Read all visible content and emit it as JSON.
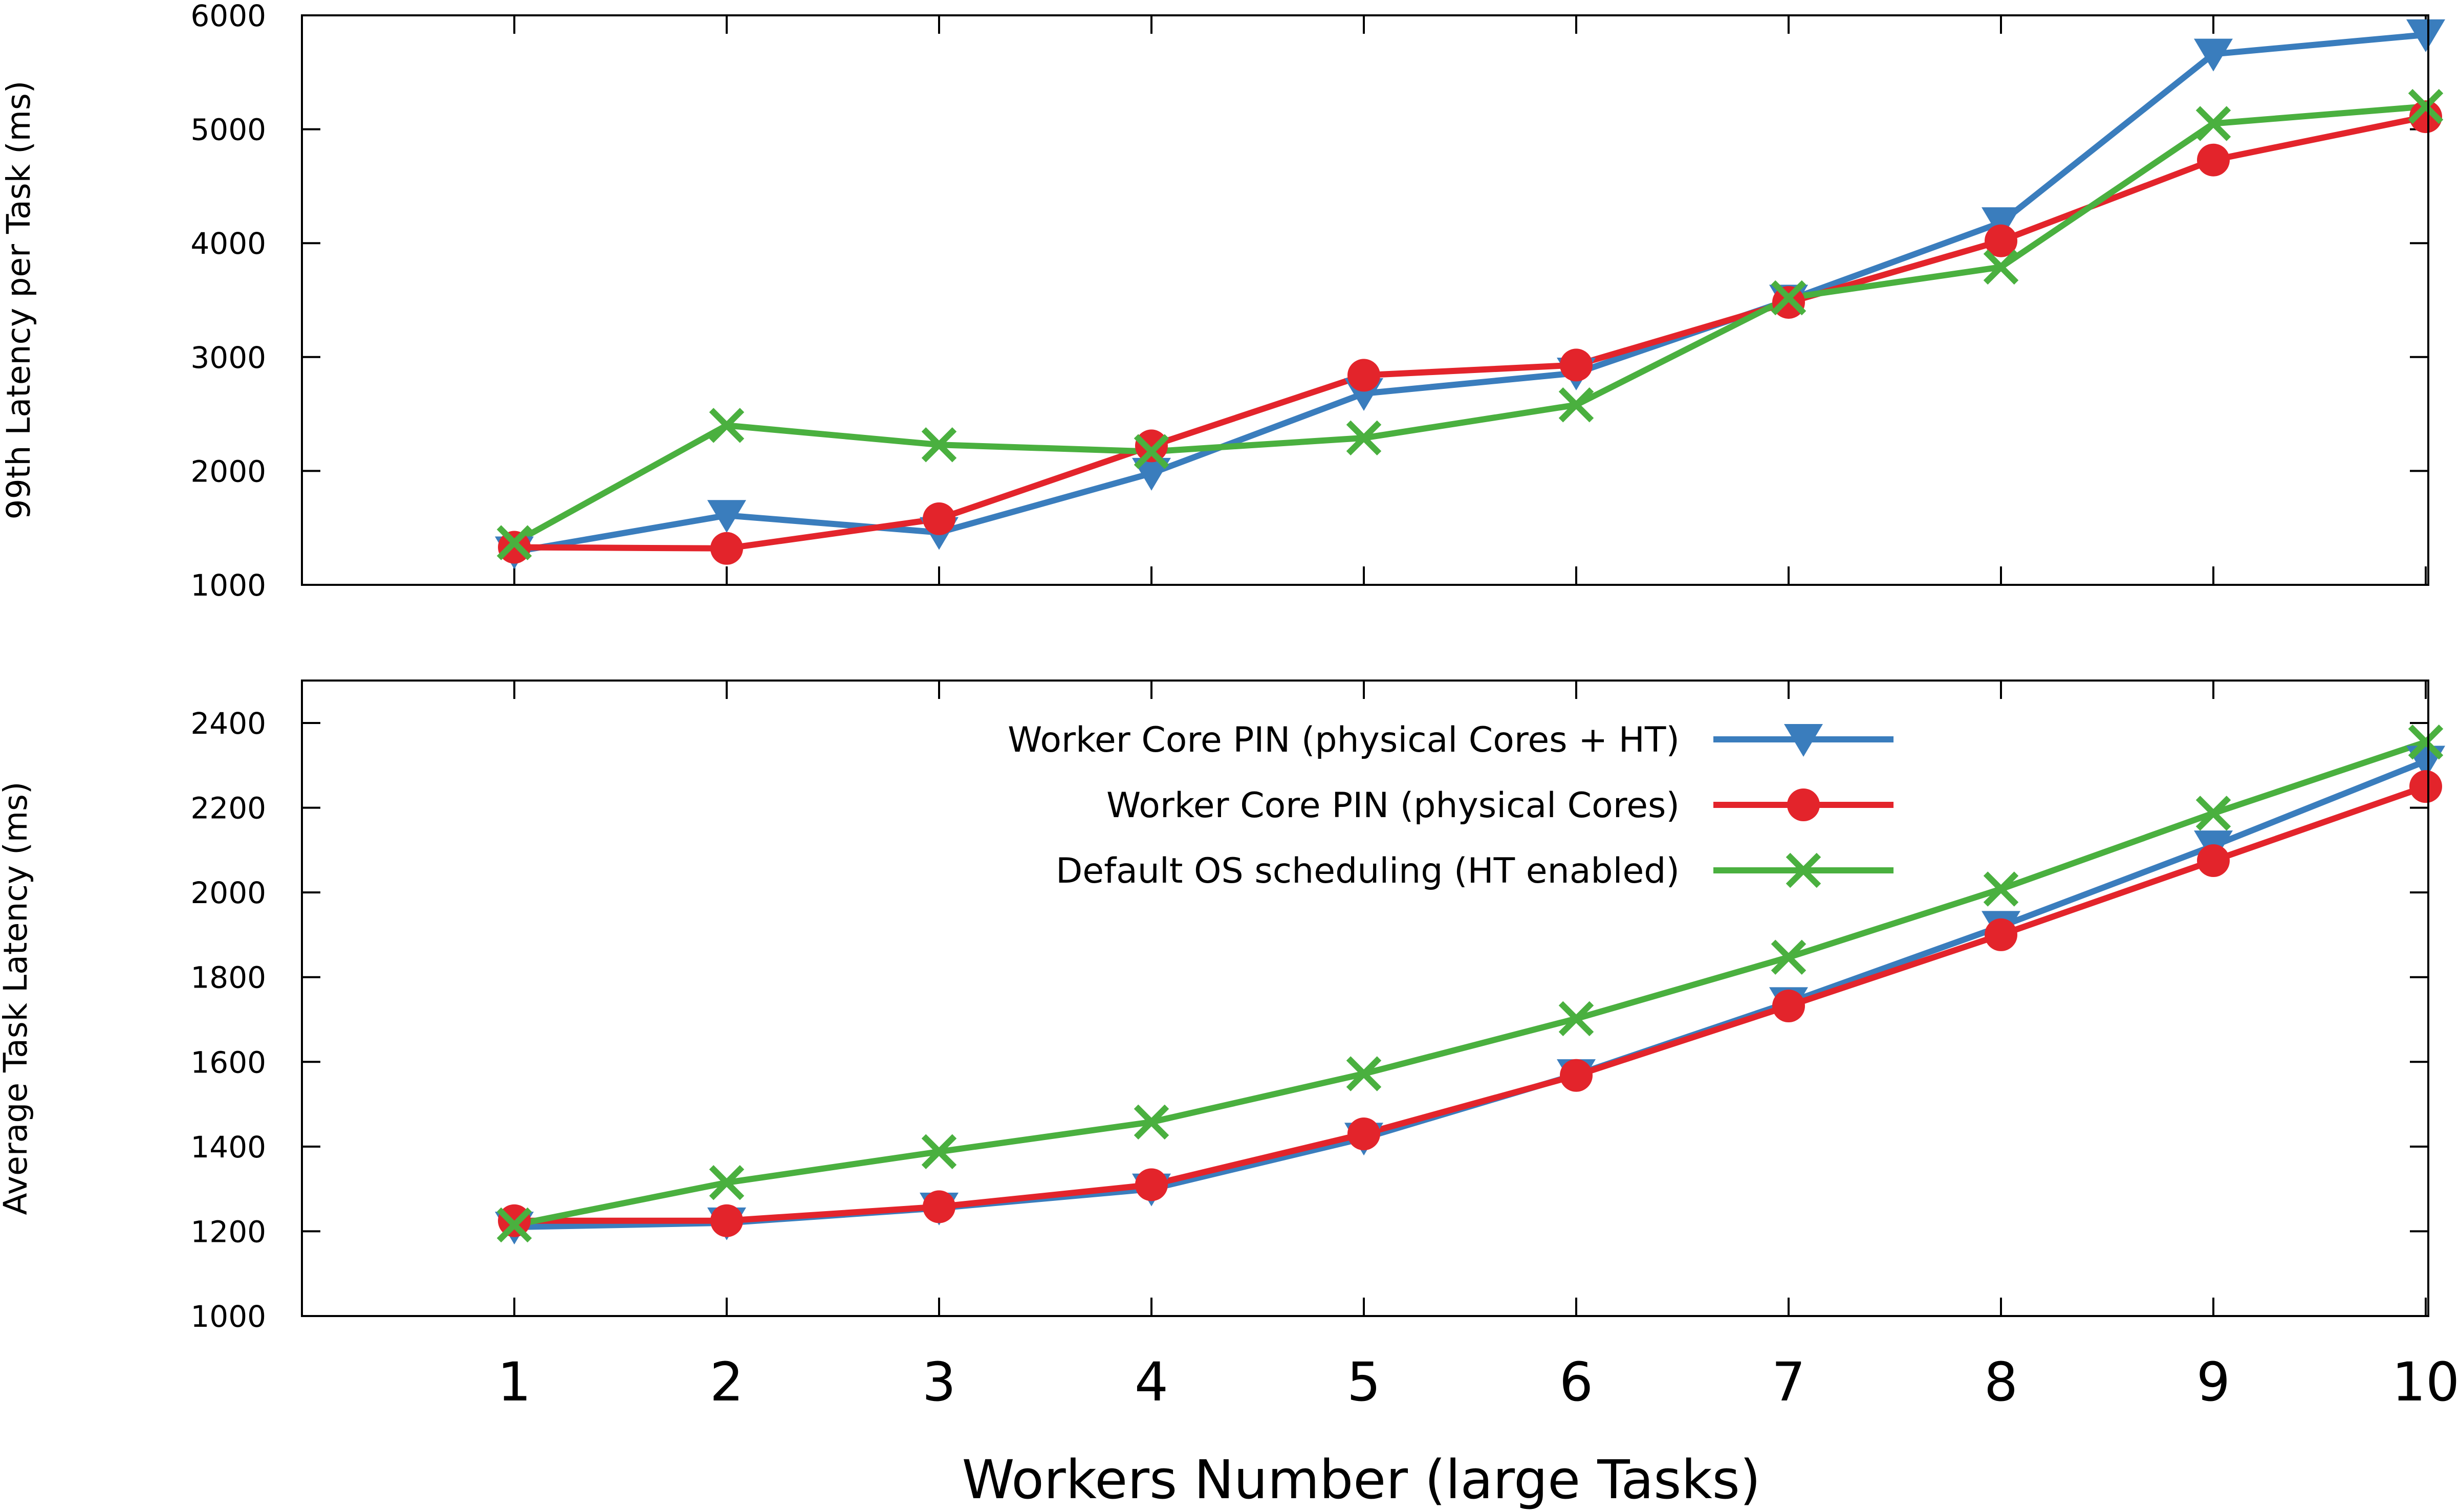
{
  "chart_data": [
    {
      "type": "line",
      "ylabel": "99th Latency per Task (ms)",
      "xlabel": "",
      "ylim": [
        1000,
        6000
      ],
      "yticks": [
        1000,
        2000,
        3000,
        4000,
        5000,
        6000
      ],
      "x": [
        1,
        2,
        3,
        4,
        5,
        6,
        7,
        8,
        9,
        10
      ],
      "series": [
        {
          "key": "pin_ht",
          "values": [
            1290,
            1610,
            1460,
            1980,
            2680,
            2860,
            3500,
            4180,
            5660,
            5830
          ]
        },
        {
          "key": "pin_phys",
          "values": [
            1330,
            1320,
            1580,
            2220,
            2840,
            2930,
            3480,
            4020,
            4730,
            5110
          ]
        },
        {
          "key": "default",
          "values": [
            1370,
            2400,
            2230,
            2170,
            2290,
            2580,
            3520,
            3790,
            5050,
            5200
          ]
        }
      ]
    },
    {
      "type": "line",
      "ylabel": "Average Task Latency (ms)",
      "xlabel": "Workers Number (large Tasks)",
      "ylim": [
        1000,
        2500
      ],
      "yticks": [
        1000,
        1200,
        1400,
        1600,
        1800,
        2000,
        2200,
        2400
      ],
      "xticks": [
        "1",
        "2",
        "3",
        "4",
        "5",
        "6",
        "7",
        "8",
        "9",
        "10"
      ],
      "x": [
        1,
        2,
        3,
        4,
        5,
        6,
        7,
        8,
        9,
        10
      ],
      "legend_position": "top-center",
      "series": [
        {
          "key": "pin_ht",
          "name": "Worker Core PIN (physical Cores + HT)",
          "values": [
            1210,
            1220,
            1255,
            1300,
            1420,
            1570,
            1740,
            1920,
            2110,
            2310
          ]
        },
        {
          "key": "pin_phys",
          "name": "Worker Core PIN (physical Cores)",
          "values": [
            1225,
            1225,
            1258,
            1310,
            1430,
            1568,
            1732,
            1900,
            2075,
            2250
          ]
        },
        {
          "key": "default",
          "name": "Default OS scheduling (HT enabled)",
          "values": [
            1215,
            1315,
            1388,
            1458,
            1572,
            1702,
            1847,
            2008,
            2187,
            2355
          ]
        }
      ]
    }
  ],
  "colors": {
    "pin_ht": "#3a7dbd",
    "pin_phys": "#e3242b",
    "default": "#4ab03f",
    "axis": "#000000"
  },
  "markers": {
    "pin_ht": "triangle-down",
    "pin_phys": "circle",
    "default": "cross"
  }
}
